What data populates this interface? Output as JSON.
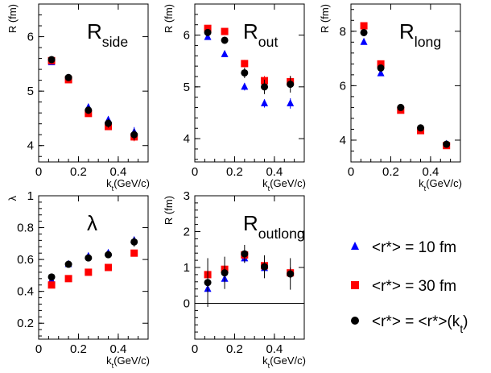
{
  "chart_data": [
    {
      "type": "scatter",
      "title": "R",
      "title_sub": "side",
      "ylabel": "R (fm)",
      "xlabel": "k",
      "xlabel_sub": "t",
      "xlabel_suffix": "(GeV/c)",
      "xlim": [
        0,
        0.55
      ],
      "ylim": [
        3.7,
        6.6
      ],
      "xticks": [
        0,
        0.2,
        0.4
      ],
      "xtick_labels": [
        "0",
        "0.2",
        "0.4"
      ],
      "yticks": [
        4,
        5,
        6
      ],
      "ytick_labels": [
        "4",
        "5",
        "6"
      ],
      "zero_line": false,
      "series": [
        {
          "marker": "triangle",
          "color": "#0000ff",
          "x": [
            0.065,
            0.15,
            0.25,
            0.35,
            0.48
          ],
          "y": [
            5.53,
            5.24,
            4.7,
            4.47,
            4.25
          ],
          "err": [
            0.04,
            0.04,
            0.06,
            0.07,
            0.09
          ]
        },
        {
          "marker": "square",
          "color": "#ff0000",
          "x": [
            0.065,
            0.15,
            0.25,
            0.35,
            0.48
          ],
          "y": [
            5.56,
            5.21,
            4.59,
            4.35,
            4.16
          ],
          "err": [
            0.04,
            0.04,
            0.05,
            0.06,
            0.08
          ]
        },
        {
          "marker": "circle",
          "color": "#000000",
          "x": [
            0.065,
            0.15,
            0.25,
            0.35,
            0.48
          ],
          "y": [
            5.58,
            5.25,
            4.65,
            4.41,
            4.2
          ],
          "err": [
            0.04,
            0.04,
            0.07,
            0.08,
            0.1
          ]
        }
      ]
    },
    {
      "type": "scatter",
      "title": "R",
      "title_sub": "out",
      "ylabel": "R (fm)",
      "xlabel": "k",
      "xlabel_sub": "t",
      "xlabel_suffix": "(GeV/c)",
      "xlim": [
        0,
        0.55
      ],
      "ylim": [
        3.55,
        6.6
      ],
      "xticks": [
        0,
        0.2,
        0.4
      ],
      "xtick_labels": [
        "0",
        "0.2",
        "0.4"
      ],
      "yticks": [
        4,
        5,
        6
      ],
      "ytick_labels": [
        "4",
        "5",
        "6"
      ],
      "zero_line": false,
      "series": [
        {
          "marker": "triangle",
          "color": "#0000ff",
          "x": [
            0.065,
            0.15,
            0.25,
            0.35,
            0.48
          ],
          "y": [
            5.96,
            5.63,
            5.0,
            4.68,
            4.68
          ],
          "err": [
            0.04,
            0.04,
            0.07,
            0.08,
            0.1
          ]
        },
        {
          "marker": "square",
          "color": "#ff0000",
          "x": [
            0.065,
            0.15,
            0.25,
            0.35,
            0.48
          ],
          "y": [
            6.13,
            6.07,
            5.45,
            5.12,
            5.1
          ],
          "err": [
            0.04,
            0.04,
            0.07,
            0.09,
            0.11
          ]
        },
        {
          "marker": "circle",
          "color": "#000000",
          "x": [
            0.065,
            0.15,
            0.25,
            0.35,
            0.48
          ],
          "y": [
            6.05,
            5.9,
            5.27,
            5.0,
            5.05
          ],
          "err": [
            0.05,
            0.05,
            0.1,
            0.14,
            0.16
          ]
        }
      ]
    },
    {
      "type": "scatter",
      "title": "R",
      "title_sub": "long",
      "ylabel": "R (fm)",
      "xlabel": "k",
      "xlabel_sub": "t",
      "xlabel_suffix": "(GeV/c)",
      "xlim": [
        0,
        0.55
      ],
      "ylim": [
        3.2,
        9.0
      ],
      "xticks": [
        0,
        0.2,
        0.4
      ],
      "xtick_labels": [
        "0",
        "0.2",
        "0.4"
      ],
      "yticks": [
        4,
        6,
        8
      ],
      "ytick_labels": [
        "4",
        "6",
        "8"
      ],
      "zero_line": false,
      "series": [
        {
          "marker": "triangle",
          "color": "#0000ff",
          "x": [
            0.065,
            0.15,
            0.25,
            0.35,
            0.48
          ],
          "y": [
            7.6,
            6.45,
            5.1,
            4.42,
            3.85
          ],
          "err": [
            0.06,
            0.06,
            0.06,
            0.06,
            0.06
          ]
        },
        {
          "marker": "square",
          "color": "#ff0000",
          "x": [
            0.065,
            0.15,
            0.25,
            0.35,
            0.48
          ],
          "y": [
            8.2,
            6.8,
            5.1,
            4.35,
            3.8
          ],
          "err": [
            0.06,
            0.06,
            0.06,
            0.06,
            0.06
          ]
        },
        {
          "marker": "circle",
          "color": "#000000",
          "x": [
            0.065,
            0.15,
            0.25,
            0.35,
            0.48
          ],
          "y": [
            7.95,
            6.65,
            5.2,
            4.45,
            3.85
          ],
          "err": [
            0.06,
            0.06,
            0.08,
            0.08,
            0.1
          ]
        }
      ]
    },
    {
      "type": "scatter",
      "title": "λ",
      "title_sub": "",
      "ylabel": "λ",
      "xlabel": "k",
      "xlabel_sub": "t",
      "xlabel_suffix": "(GeV/c)",
      "xlim": [
        0,
        0.55
      ],
      "ylim": [
        0.1,
        1.0
      ],
      "xticks": [
        0,
        0.2,
        0.4
      ],
      "xtick_labels": [
        "0",
        "0.2",
        "0.4"
      ],
      "yticks": [
        0.2,
        0.4,
        0.6,
        0.8,
        1.0
      ],
      "ytick_labels": [
        "0.2",
        "0.4",
        "0.6",
        "0.8",
        "1"
      ],
      "zero_line": false,
      "series": [
        {
          "marker": "triangle",
          "color": "#0000ff",
          "x": [
            0.065,
            0.15,
            0.25,
            0.35,
            0.48
          ],
          "y": [
            0.47,
            0.57,
            0.62,
            0.64,
            0.72
          ],
          "err": [
            0.01,
            0.01,
            0.01,
            0.015,
            0.02
          ]
        },
        {
          "marker": "square",
          "color": "#ff0000",
          "x": [
            0.065,
            0.15,
            0.25,
            0.35,
            0.48
          ],
          "y": [
            0.44,
            0.48,
            0.52,
            0.55,
            0.64
          ],
          "err": [
            0.01,
            0.01,
            0.01,
            0.01,
            0.02
          ]
        },
        {
          "marker": "circle",
          "color": "#000000",
          "x": [
            0.065,
            0.15,
            0.25,
            0.35,
            0.48
          ],
          "y": [
            0.49,
            0.57,
            0.61,
            0.63,
            0.71
          ],
          "err": [
            0.01,
            0.01,
            0.015,
            0.02,
            0.03
          ]
        }
      ]
    },
    {
      "type": "scatter",
      "title": "R",
      "title_sub": "outlong",
      "ylabel": "R (fm)",
      "xlabel": "k",
      "xlabel_sub": "t",
      "xlabel_suffix": "(GeV/c)",
      "xlim": [
        0,
        0.55
      ],
      "ylim": [
        -1.0,
        3.0
      ],
      "xticks": [
        0,
        0.2,
        0.4
      ],
      "xtick_labels": [
        "0",
        "0.2",
        "0.4"
      ],
      "yticks": [
        0,
        1,
        2,
        3
      ],
      "ytick_labels": [
        "0",
        "1",
        "2",
        "3"
      ],
      "zero_line": true,
      "series": [
        {
          "marker": "triangle",
          "color": "#0000ff",
          "x": [
            0.065,
            0.15,
            0.25,
            0.35,
            0.48
          ],
          "y": [
            0.4,
            0.68,
            1.25,
            0.98,
            0.85
          ],
          "err": [
            0.08,
            0.1,
            0.12,
            0.12,
            0.15
          ]
        },
        {
          "marker": "square",
          "color": "#ff0000",
          "x": [
            0.065,
            0.15,
            0.25,
            0.35,
            0.48
          ],
          "y": [
            0.8,
            0.95,
            1.35,
            1.05,
            0.85
          ],
          "err": [
            0.08,
            0.1,
            0.12,
            0.12,
            0.15
          ]
        },
        {
          "marker": "circle",
          "color": "#000000",
          "x": [
            0.065,
            0.15,
            0.25,
            0.35,
            0.48
          ],
          "y": [
            0.58,
            0.85,
            1.38,
            1.02,
            0.82
          ],
          "err": [
            0.68,
            0.45,
            0.25,
            0.32,
            0.44
          ]
        }
      ]
    }
  ],
  "legend": [
    {
      "marker": "triangle",
      "color": "#0000ff",
      "label": "<r*> = 10 fm"
    },
    {
      "marker": "square",
      "color": "#ff0000",
      "label": "<r*> = 30 fm"
    },
    {
      "marker": "circle",
      "color": "#000000",
      "label": "<r*> = <r*>(k",
      "label_sub": "t",
      "label_suffix": ")"
    }
  ]
}
